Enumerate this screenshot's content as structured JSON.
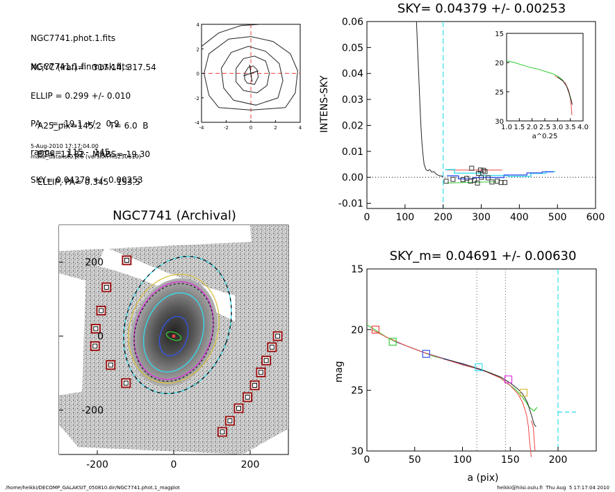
{
  "header": {
    "files": [
      "NGC7741.phot.1.fits",
      "NGC7741.1.finmask.fits"
    ],
    "params": [
      "XC,YC (iraf)=   317.14, 317.54",
      "ELLIP = 0.299 +/- 0.010",
      "PA    = -19.1 +/-   0.9",
      "range=  115.-  145.",
      "SKY= 0.04379 +/- 0.00253"
    ],
    "results": [
      "A25_pix=145.2   T= 6.0  B",
      "BT=  11.82   MABS=-19.30",
      "ELLIP, PA= 0.345   153.5"
    ],
    "date": "5-Aug-2010 17:17:04.00",
    "program": "make_datalist0.pro (version HS230610)"
  },
  "footer": {
    "left": "/home/heikki/DECOMP_GALAKSIT_050810.dir/NGC7741.phot.1_magplot",
    "right": "heikki@hiisi.oulu.fi  Thu Aug  5 17:17:04 2010"
  },
  "colors": {
    "cyan": "#33ddee",
    "red": "#ee4444",
    "green": "#33cc33",
    "blue": "#3355ee",
    "magenta": "#dd33dd",
    "yellow": "#d8c040",
    "box": "#991111"
  },
  "chart_data": [
    {
      "type": "line",
      "id": "contour",
      "title": "",
      "xlim": [
        -4,
        4
      ],
      "ylim": [
        -4,
        4
      ],
      "xticks": [
        "-4",
        "-2",
        "0",
        "2",
        "4"
      ],
      "yticks": [
        "4",
        "2",
        "0",
        "-2",
        "-4"
      ],
      "contours": [
        [
          [
            -0.3,
            -0.8
          ],
          [
            0.3,
            -0.9
          ],
          [
            0.6,
            -0.3
          ],
          [
            0.5,
            0.3
          ],
          [
            0.2,
            0.6
          ],
          [
            -0.2,
            0.5
          ],
          [
            -0.5,
            0.0
          ],
          [
            -0.5,
            -0.5
          ],
          [
            -0.3,
            -0.8
          ]
        ],
        [
          [
            -0.6,
            -1.4
          ],
          [
            0.5,
            -1.6
          ],
          [
            1.3,
            -1.0
          ],
          [
            1.5,
            0.0
          ],
          [
            1.2,
            1.0
          ],
          [
            0.3,
            1.4
          ],
          [
            -0.6,
            1.2
          ],
          [
            -1.2,
            0.4
          ],
          [
            -1.2,
            -0.7
          ],
          [
            -0.6,
            -1.4
          ]
        ],
        [
          [
            -1.4,
            -2.2
          ],
          [
            0.4,
            -2.6
          ],
          [
            2.2,
            -2.0
          ],
          [
            2.6,
            -0.6
          ],
          [
            2.3,
            0.8
          ],
          [
            1.2,
            1.8
          ],
          [
            -0.2,
            2.2
          ],
          [
            -1.6,
            1.7
          ],
          [
            -2.4,
            0.4
          ],
          [
            -2.2,
            -1.2
          ],
          [
            -1.4,
            -2.2
          ]
        ],
        [
          [
            -2.6,
            -2.8
          ],
          [
            0.0,
            -3.0
          ],
          [
            2.8,
            -2.8
          ],
          [
            3.6,
            -1.6
          ],
          [
            3.8,
            0.2
          ],
          [
            3.2,
            1.6
          ],
          [
            1.8,
            2.6
          ],
          [
            0.0,
            3.0
          ],
          [
            -1.8,
            2.8
          ],
          [
            -3.4,
            1.6
          ],
          [
            -3.8,
            0.0
          ],
          [
            -3.4,
            -1.8
          ],
          [
            -2.6,
            -2.8
          ]
        ],
        [
          [
            -4.0,
            2.2
          ],
          [
            -2.6,
            3.3
          ],
          [
            -0.8,
            3.9
          ],
          [
            0.8,
            4.0
          ]
        ]
      ],
      "cross": [
        0,
        0
      ]
    },
    {
      "type": "line",
      "id": "sky",
      "title": "SKY= 0.04379 +/- 0.00253",
      "xlabel": "",
      "ylabel": "INTENS-SKY",
      "xlim": [
        0,
        600
      ],
      "ylim": [
        -0.012,
        0.06
      ],
      "xticks": [
        0,
        100,
        200,
        300,
        400,
        500,
        600
      ],
      "yticks": [
        "0.06",
        "0.05",
        "0.04",
        "0.03",
        "0.02",
        "0.01",
        "0.00",
        "-0.01"
      ],
      "ytick_values": [
        0.06,
        0.05,
        0.04,
        0.03,
        0.02,
        0.01,
        0.0,
        -0.01
      ],
      "profile": [
        [
          130,
          0.06
        ],
        [
          132,
          0.053
        ],
        [
          134,
          0.046
        ],
        [
          136,
          0.039
        ],
        [
          138,
          0.032
        ],
        [
          140,
          0.025
        ],
        [
          142,
          0.019
        ],
        [
          144,
          0.014
        ],
        [
          147,
          0.009
        ],
        [
          150,
          0.005
        ],
        [
          155,
          0.003
        ],
        [
          160,
          0.0025
        ],
        [
          165,
          0.003
        ],
        [
          170,
          0.002
        ],
        [
          176,
          0.0022
        ],
        [
          182,
          0.0012
        ],
        [
          190,
          0.0006
        ],
        [
          200,
          0.0004
        ]
      ],
      "sky_vline": 200,
      "squares": [
        [
          208,
          -0.0015
        ],
        [
          226,
          -0.0008
        ],
        [
          252,
          -0.0009
        ],
        [
          262,
          -0.0004
        ],
        [
          272,
          -0.0015
        ],
        [
          282,
          -0.0011
        ],
        [
          275,
          0.0035
        ],
        [
          290,
          -0.0022
        ],
        [
          293,
          0.0015
        ],
        [
          300,
          0.0
        ],
        [
          310,
          0.0022
        ],
        [
          318,
          -0.0002
        ],
        [
          328,
          -0.0018
        ],
        [
          342,
          -0.0015
        ],
        [
          352,
          -0.002
        ],
        [
          362,
          -0.002
        ],
        [
          306,
          0.0027
        ],
        [
          298,
          0.0028
        ]
      ],
      "red_line": [
        [
          210,
          0.0028
        ],
        [
          355,
          0.0028
        ]
      ],
      "green_line": [
        [
          210,
          -0.0022
        ],
        [
          340,
          -0.0017
        ]
      ],
      "blue_step": [
        [
          210,
          0.0006
        ],
        [
          240,
          0.0006
        ],
        [
          240,
          -0.0006
        ],
        [
          280,
          -0.0006
        ],
        [
          280,
          -0.0001
        ],
        [
          360,
          -0.0001
        ],
        [
          360,
          0.0009
        ],
        [
          420,
          0.0009
        ],
        [
          420,
          0.0017
        ],
        [
          460,
          0.0017
        ],
        [
          460,
          0.0021
        ],
        [
          490,
          0.0021
        ]
      ],
      "cyan_step": [
        [
          205,
          0.003
        ],
        [
          230,
          0.003
        ],
        [
          230,
          0.0016
        ],
        [
          300,
          0.0016
        ],
        [
          300,
          0.0007
        ],
        [
          370,
          0.0007
        ],
        [
          370,
          0.0004
        ],
        [
          430,
          0.0004
        ],
        [
          430,
          0.0015
        ],
        [
          470,
          0.0015
        ],
        [
          470,
          0.0022
        ],
        [
          495,
          0.0022
        ]
      ],
      "inset": {
        "xlabel": "a^0.25",
        "xlim": [
          1.0,
          4.0
        ],
        "ylim": [
          15,
          30
        ],
        "xticks": [
          "1.0",
          "1.5",
          "2.0",
          "2.5",
          "3.0",
          "3.5",
          "4.0"
        ],
        "xtick_values": [
          1.0,
          1.5,
          2.0,
          2.5,
          3.0,
          3.5,
          4.0
        ],
        "yticks": [
          "15",
          "20",
          "25",
          "30"
        ],
        "ytick_values": [
          15,
          20,
          25,
          30
        ],
        "green_curve": [
          [
            1.0,
            19.7
          ],
          [
            1.3,
            20.0
          ],
          [
            1.6,
            20.4
          ],
          [
            1.9,
            20.8
          ],
          [
            2.2,
            21.1
          ],
          [
            2.5,
            21.5
          ],
          [
            2.8,
            21.9
          ],
          [
            3.0,
            22.3
          ],
          [
            3.2,
            23.0
          ],
          [
            3.35,
            24.0
          ],
          [
            3.45,
            25.0
          ],
          [
            3.5,
            25.9
          ],
          [
            3.55,
            26.6
          ]
        ],
        "red_curve": [
          [
            2.9,
            22.3
          ],
          [
            3.1,
            22.8
          ],
          [
            3.3,
            23.5
          ],
          [
            3.42,
            24.6
          ],
          [
            3.48,
            25.6
          ],
          [
            3.52,
            26.6
          ],
          [
            3.54,
            27.5
          ],
          [
            3.56,
            29.0
          ]
        ],
        "black_curve": [
          [
            3.0,
            22.5
          ],
          [
            3.2,
            23.1
          ],
          [
            3.35,
            24.0
          ],
          [
            3.45,
            25.2
          ],
          [
            3.52,
            26.3
          ],
          [
            3.58,
            27.2
          ]
        ]
      }
    },
    {
      "type": "scatter",
      "id": "image",
      "title": "NGC7741 (Archival)",
      "xlim": [
        -300,
        300
      ],
      "ylim": [
        -320,
        300
      ],
      "xticks": [
        -200,
        0,
        200
      ],
      "yticks": [
        "200",
        "0",
        "-200"
      ],
      "ytick_values": [
        200,
        0,
        -200
      ],
      "red_boxes": [
        [
          -123,
          205
        ],
        [
          -176,
          132
        ],
        [
          -190,
          69
        ],
        [
          -204,
          20
        ],
        [
          -206,
          -27
        ],
        [
          -165,
          -78
        ],
        [
          -125,
          -127
        ],
        [
          272,
          0
        ],
        [
          257,
          -30
        ],
        [
          242,
          -66
        ],
        [
          228,
          -98
        ],
        [
          212,
          -133
        ],
        [
          193,
          -165
        ],
        [
          170,
          -195
        ],
        [
          147,
          -229
        ],
        [
          127,
          -259
        ]
      ],
      "ellipses": [
        {
          "color": "#33ddee",
          "rx": 135,
          "ry": 190,
          "angle": -19,
          "cx": 10,
          "cy": 30
        },
        {
          "color": "#d8c040",
          "rx": 115,
          "ry": 150,
          "angle": -19,
          "cx": 0,
          "cy": 20
        },
        {
          "color": "#dd33dd",
          "rx": 100,
          "ry": 135,
          "angle": -19,
          "cx": 0,
          "cy": 15
        },
        {
          "color": "#33ddee",
          "rx": 75,
          "ry": 110,
          "angle": -19,
          "cx": 0,
          "cy": 10
        },
        {
          "color": "#3355ee",
          "rx": 35,
          "ry": 55,
          "angle": -19,
          "cx": 0,
          "cy": 0
        },
        {
          "color": "#33cc33",
          "rx": 20,
          "ry": 10,
          "angle": -19,
          "cx": 0,
          "cy": 0
        }
      ]
    },
    {
      "type": "line",
      "id": "magplot",
      "title": "SKY_m=  0.04691 +/- 0.00630",
      "xlabel": "a (pix)",
      "ylabel": "mag",
      "xlim": [
        0,
        240
      ],
      "ylim": [
        15,
        30
      ],
      "xticks": [
        0,
        50,
        100,
        150,
        200
      ],
      "yticks": [
        "15",
        "20",
        "25",
        "30"
      ],
      "ytick_values": [
        15,
        20,
        25,
        30
      ],
      "vlines_dotted": [
        115,
        145
      ],
      "vline_cyan": 200,
      "cyan_hline": [
        [
          200,
          26.8
        ],
        [
          220,
          26.8
        ]
      ],
      "green_curve": [
        [
          0,
          19.6
        ],
        [
          10,
          20.1
        ],
        [
          20,
          20.6
        ],
        [
          30,
          21.0
        ],
        [
          40,
          21.3
        ],
        [
          50,
          21.6
        ],
        [
          60,
          21.9
        ],
        [
          70,
          22.2
        ],
        [
          80,
          22.4
        ],
        [
          90,
          22.6
        ],
        [
          100,
          22.9
        ],
        [
          110,
          23.1
        ],
        [
          120,
          23.3
        ],
        [
          130,
          23.6
        ],
        [
          140,
          24.0
        ],
        [
          148,
          24.5
        ],
        [
          155,
          24.9
        ],
        [
          160,
          25.3
        ],
        [
          165,
          25.8
        ],
        [
          170,
          26.4
        ],
        [
          175,
          26.7
        ],
        [
          178,
          26.4
        ]
      ],
      "red_curve": [
        [
          5,
          20.0
        ],
        [
          20,
          20.6
        ],
        [
          40,
          21.3
        ],
        [
          60,
          21.9
        ],
        [
          80,
          22.4
        ],
        [
          100,
          22.9
        ],
        [
          120,
          23.3
        ],
        [
          140,
          24.0
        ],
        [
          150,
          24.6
        ],
        [
          158,
          25.3
        ],
        [
          163,
          26.0
        ],
        [
          167,
          27.0
        ],
        [
          169,
          28.0
        ],
        [
          170,
          29.0
        ],
        [
          172,
          30.5
        ]
      ],
      "red_curve2": [
        [
          172,
          27.5
        ],
        [
          174,
          28.0
        ],
        [
          175,
          29.0
        ],
        [
          176,
          30.0
        ]
      ],
      "black_curve": [
        [
          80,
          22.4
        ],
        [
          100,
          22.8
        ],
        [
          120,
          23.3
        ],
        [
          140,
          23.9
        ],
        [
          150,
          24.4
        ],
        [
          158,
          24.9
        ],
        [
          163,
          25.3
        ],
        [
          168,
          26.0
        ],
        [
          172,
          27.0
        ],
        [
          175,
          27.8
        ],
        [
          177,
          28.0
        ]
      ],
      "blue_curve": [
        [
          30,
          21.0
        ],
        [
          60,
          21.9
        ],
        [
          90,
          22.6
        ],
        [
          130,
          23.6
        ]
      ],
      "squares": [
        {
          "x": 9,
          "y": 20.0,
          "color": "#ee4444"
        },
        {
          "x": 27,
          "y": 21.0,
          "color": "#33cc33"
        },
        {
          "x": 62,
          "y": 22.0,
          "color": "#3355ee"
        },
        {
          "x": 117,
          "y": 23.1,
          "color": "#33ddee"
        },
        {
          "x": 148,
          "y": 24.1,
          "color": "#dd33dd"
        },
        {
          "x": 164,
          "y": 25.2,
          "color": "#d8c040"
        }
      ]
    }
  ]
}
